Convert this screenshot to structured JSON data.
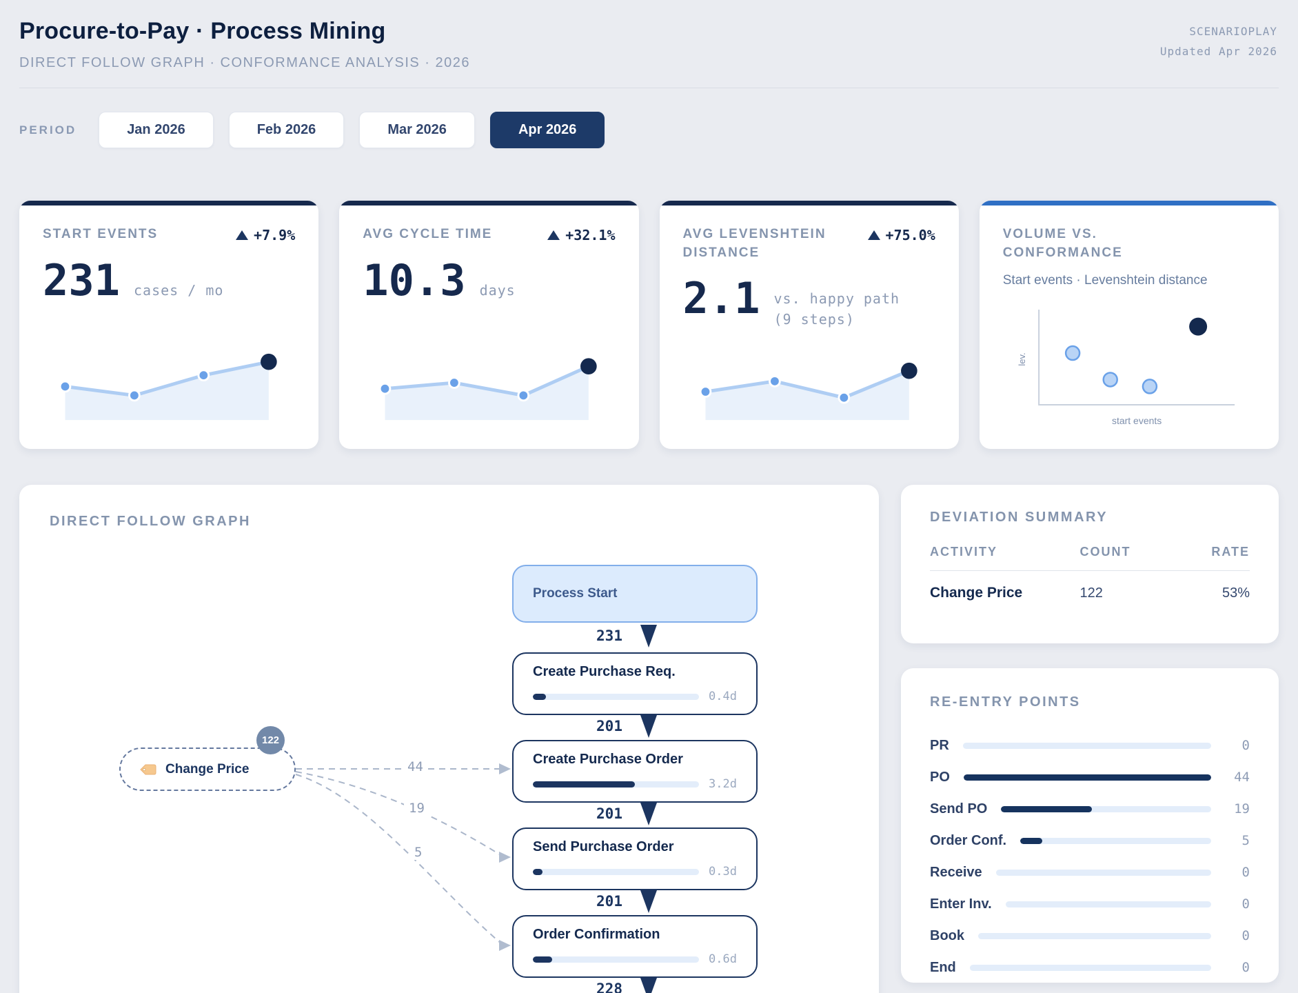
{
  "header": {
    "title": "Procure-to-Pay · Process Mining",
    "subtitle": "DIRECT FOLLOW GRAPH · CONFORMANCE ANALYSIS · 2026",
    "brand": "SCENARIOPLAY",
    "updated": "Updated Apr 2026"
  },
  "period": {
    "label": "PERIOD",
    "options": [
      {
        "label": "Jan 2026",
        "active": false
      },
      {
        "label": "Feb 2026",
        "active": false
      },
      {
        "label": "Mar 2026",
        "active": false
      },
      {
        "label": "Apr 2026",
        "active": true
      }
    ]
  },
  "kpis": [
    {
      "label": "START EVENTS",
      "delta": "+7.9%",
      "value": "231",
      "unit": "cases / mo",
      "spark": [
        0.45,
        0.33,
        0.6,
        0.78
      ]
    },
    {
      "label": "AVG CYCLE TIME",
      "delta": "+32.1%",
      "value": "10.3",
      "unit": "days",
      "spark": [
        0.42,
        0.5,
        0.33,
        0.72
      ]
    },
    {
      "label": "AVG LEVENSHTEIN DISTANCE",
      "delta": "+75.0%",
      "value": "2.1",
      "unit_line1": "vs. happy path",
      "unit_line2": "(9 steps)",
      "spark": [
        0.38,
        0.52,
        0.3,
        0.66
      ]
    }
  ],
  "scatter_card": {
    "title_line1": "VOLUME VS.",
    "title_line2": "CONFORMANCE",
    "subtitle": "Start events · Levenshtein distance",
    "xlabel": "start events",
    "ylabel": "lev.",
    "points": [
      {
        "x": 0.15,
        "y": 0.54,
        "type": "light"
      },
      {
        "x": 0.36,
        "y": 0.23,
        "type": "light"
      },
      {
        "x": 0.58,
        "y": 0.15,
        "type": "light"
      },
      {
        "x": 0.85,
        "y": 0.85,
        "type": "dark"
      }
    ]
  },
  "dfg": {
    "title": "DIRECT FOLLOW GRAPH",
    "bar_scale_days": 5.2,
    "nodes": [
      {
        "label": "Process Start",
        "type": "start"
      },
      {
        "label": "Create Purchase Req.",
        "duration": "0.4d",
        "days": 0.4
      },
      {
        "label": "Create Purchase Order",
        "duration": "3.2d",
        "days": 3.2
      },
      {
        "label": "Send Purchase Order",
        "duration": "0.3d",
        "days": 0.3
      },
      {
        "label": "Order Confirmation",
        "duration": "0.6d",
        "days": 0.6
      }
    ],
    "flow_counts": [
      "231",
      "201",
      "201",
      "201",
      "228"
    ],
    "deviation_node": {
      "label": "Change Price",
      "badge": "122"
    },
    "deviation_edges": [
      {
        "count": "44",
        "target": "Create Purchase Order"
      },
      {
        "count": "19",
        "target": "Send Purchase Order"
      },
      {
        "count": "5",
        "target": "Order Confirmation"
      }
    ]
  },
  "deviation": {
    "title": "DEVIATION SUMMARY",
    "headers": [
      "ACTIVITY",
      "COUNT",
      "RATE"
    ],
    "rows": [
      {
        "activity": "Change Price",
        "count": "122",
        "rate": "53%"
      }
    ]
  },
  "reentry": {
    "title": "RE-ENTRY POINTS",
    "max": 44,
    "rows": [
      {
        "label": "PR",
        "value": 0
      },
      {
        "label": "PO",
        "value": 44
      },
      {
        "label": "Send PO",
        "value": 19
      },
      {
        "label": "Order Conf.",
        "value": 5
      },
      {
        "label": "Receive",
        "value": 0
      },
      {
        "label": "Enter Inv.",
        "value": 0
      },
      {
        "label": "Book",
        "value": 0
      },
      {
        "label": "End",
        "value": 0
      }
    ]
  },
  "colors": {
    "navy": "#1c3560",
    "navy_text": "#14294e",
    "accent_blue": "#2f6fc4",
    "spark_line": "#aecdf3",
    "spark_dot": "#6aa1e8",
    "spark_dot_last": "#14294e",
    "spark_area": "#e9f1fb",
    "scatter_light_fill": "#b9d4f6",
    "track": "#e3edfa",
    "label_gray": "#8494ad"
  }
}
